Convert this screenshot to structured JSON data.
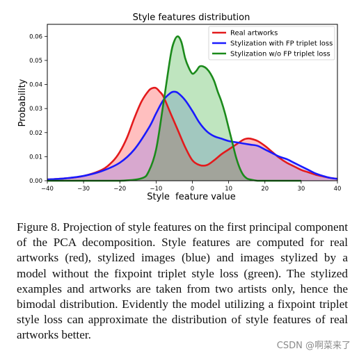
{
  "chart_data": {
    "type": "area",
    "title": "Style features distribution",
    "xlabel": "Style  feature value",
    "ylabel": "Probability",
    "xlim": [
      -40,
      40
    ],
    "ylim": [
      0,
      0.065
    ],
    "xticks": [
      -40,
      -30,
      -20,
      -10,
      0,
      10,
      20,
      30,
      40
    ],
    "xtick_labels": [
      "−40",
      "−30",
      "−20",
      "−10",
      "0",
      "10",
      "20",
      "30",
      "40"
    ],
    "yticks": [
      0,
      0.01,
      0.02,
      0.03,
      0.04,
      0.05,
      0.06
    ],
    "ytick_labels": [
      "0.00",
      "0.01",
      "0.02",
      "0.03",
      "0.04",
      "0.05",
      "0.06"
    ],
    "grid": false,
    "legend_position": "top-right",
    "series": [
      {
        "name": "Real artworks",
        "color": "#e31a1c",
        "fill": "rgba(255,0,0,0.25)",
        "x": [
          -40,
          -35,
          -30,
          -25,
          -22,
          -20,
          -18,
          -16,
          -14,
          -12,
          -11,
          -10,
          -9,
          -8,
          -6,
          -4,
          -2,
          0,
          2,
          4,
          6,
          8,
          10,
          12,
          14,
          15,
          16,
          18,
          20,
          22,
          24,
          26,
          28,
          30,
          32,
          34,
          36,
          38,
          40
        ],
        "y": [
          0.0005,
          0.001,
          0.002,
          0.0045,
          0.008,
          0.012,
          0.018,
          0.026,
          0.033,
          0.0375,
          0.0385,
          0.0385,
          0.037,
          0.035,
          0.028,
          0.021,
          0.014,
          0.0085,
          0.0065,
          0.0065,
          0.0085,
          0.011,
          0.013,
          0.015,
          0.017,
          0.0175,
          0.0175,
          0.0165,
          0.0145,
          0.012,
          0.0095,
          0.0075,
          0.006,
          0.0045,
          0.0035,
          0.0025,
          0.0018,
          0.0012,
          0.0008
        ]
      },
      {
        "name": "Stylization with FP triplet loss",
        "color": "#1a1aff",
        "fill": "rgba(100,100,255,0.25)",
        "x": [
          -40,
          -35,
          -30,
          -25,
          -20,
          -16,
          -12,
          -10,
          -8,
          -6,
          -5,
          -4,
          -2,
          0,
          2,
          4,
          6,
          8,
          10,
          12,
          14,
          16,
          18,
          20,
          22,
          24,
          26,
          28,
          30,
          32,
          34,
          36,
          38,
          40
        ],
        "y": [
          0.0005,
          0.001,
          0.002,
          0.004,
          0.0075,
          0.013,
          0.022,
          0.028,
          0.0335,
          0.0365,
          0.037,
          0.0365,
          0.0335,
          0.029,
          0.024,
          0.0205,
          0.0185,
          0.0175,
          0.0165,
          0.016,
          0.0155,
          0.015,
          0.0145,
          0.013,
          0.0115,
          0.01,
          0.009,
          0.0075,
          0.006,
          0.0045,
          0.003,
          0.002,
          0.0012,
          0.0008
        ]
      },
      {
        "name": "Stylization w/o FP triplet loss",
        "color": "#1b8a1b",
        "fill": "rgba(0,150,0,0.25)",
        "x": [
          -40,
          -30,
          -20,
          -14,
          -12,
          -10,
          -8,
          -6,
          -5,
          -4,
          -3,
          -2,
          -1,
          0,
          1,
          2,
          3,
          4,
          5,
          6,
          7,
          8,
          9,
          10,
          11,
          12,
          13,
          14,
          15,
          16,
          18,
          20,
          25,
          30
        ],
        "y": [
          0,
          0,
          0,
          0.001,
          0.004,
          0.013,
          0.032,
          0.052,
          0.058,
          0.06,
          0.0575,
          0.051,
          0.047,
          0.0445,
          0.0455,
          0.0475,
          0.0475,
          0.0465,
          0.0445,
          0.0415,
          0.037,
          0.033,
          0.028,
          0.022,
          0.016,
          0.01,
          0.0055,
          0.0025,
          0.001,
          0.0005,
          0,
          0,
          0,
          0
        ]
      }
    ]
  },
  "caption": "Figure 8. Projection of style features on the first principal component of the PCA decomposition. Style features are computed for real artworks (red), stylized images (blue) and images stylized by a model without the fixpoint triplet style loss (green). The stylized examples and artworks are taken from two artists only, hence the bimodal distribution. Evidently the model utilizing a fixpoint triplet style loss can approximate the distribution of style features of real artworks better.",
  "watermark": "CSDN @啊菜来了"
}
